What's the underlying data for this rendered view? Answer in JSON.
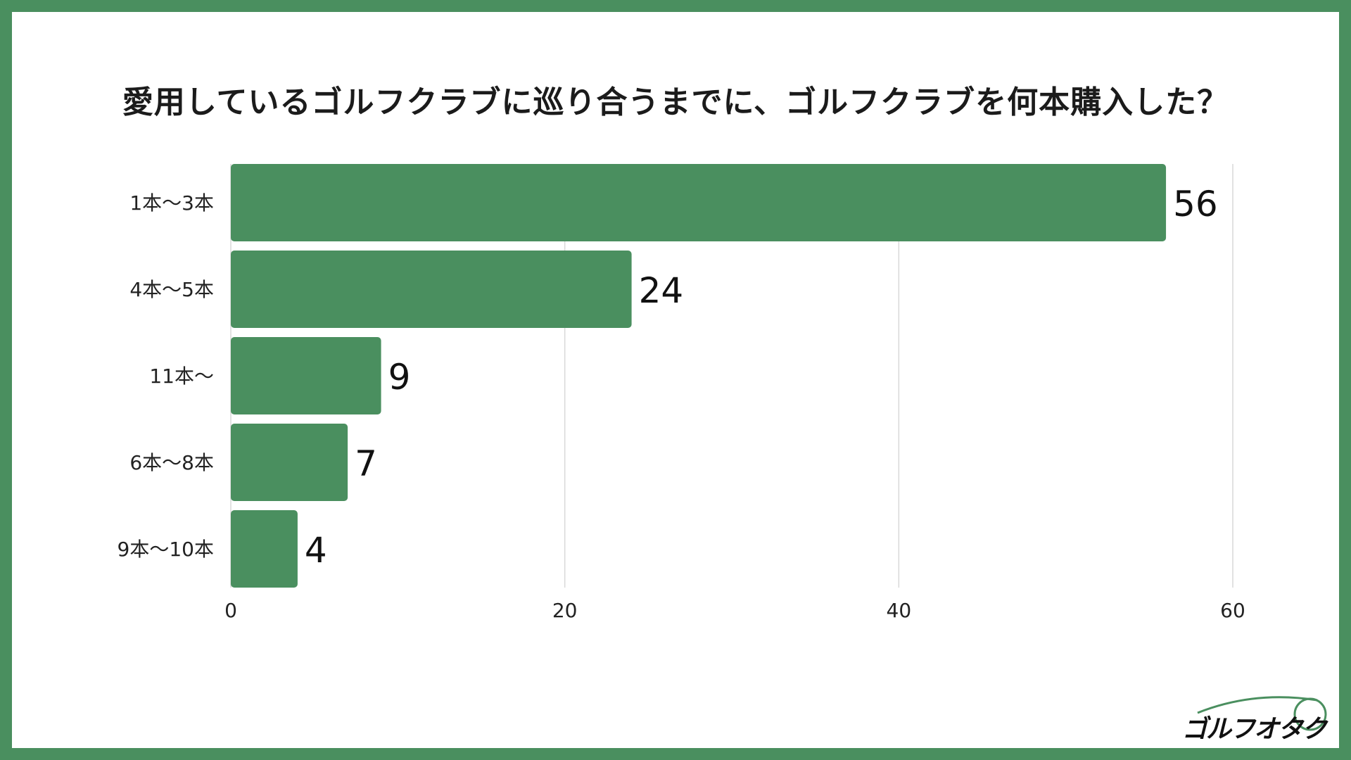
{
  "title": "愛用しているゴルフクラブに巡り合うまでに、ゴルフクラブを何本購入した？",
  "logo_text": "ゴルフオタク",
  "colors": {
    "bar": "#4a8f5f",
    "border": "#4a8f5f",
    "grid": "#d9d9d9"
  },
  "chart_data": {
    "type": "bar",
    "orientation": "horizontal",
    "title": "愛用しているゴルフクラブに巡り合うまでに、ゴルフクラブを何本購入した？",
    "categories": [
      "1本〜3本",
      "4本〜5本",
      "11本〜",
      "6本〜8本",
      "9本〜10本"
    ],
    "values": [
      56,
      24,
      9,
      7,
      4
    ],
    "xlim": [
      0,
      60
    ],
    "xticks": [
      0,
      20,
      40,
      60
    ],
    "grid": true,
    "data_labels": true
  }
}
